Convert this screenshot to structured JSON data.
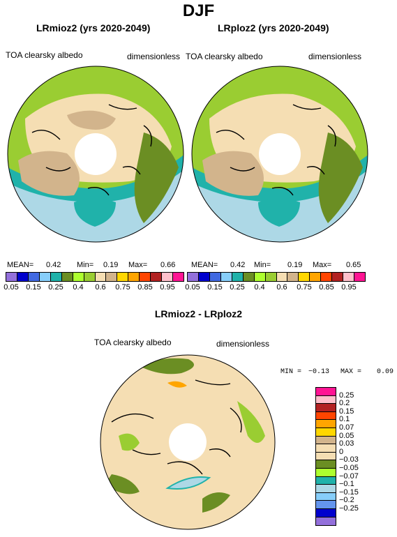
{
  "season": "DJF",
  "panel_left": {
    "title": "LRmioz2 (yrs 2020-2049)",
    "variable": "TOA clearsky albedo",
    "units": "dimensionless",
    "stats": {
      "mean_label": "MEAN=",
      "mean": "0.42",
      "min_label": "Min=",
      "min": "0.19",
      "max_label": "Max=",
      "max": "0.66"
    }
  },
  "panel_right": {
    "title": "LRploz2 (yrs 2020-2049)",
    "variable": "TOA clearsky albedo",
    "units": "dimensionless",
    "stats": {
      "mean_label": "MEAN=",
      "mean": "0.42",
      "min_label": "Min=",
      "min": "0.19",
      "max_label": "Max=",
      "max": "0.65"
    }
  },
  "colorbar_top": {
    "colors": [
      "#9370db",
      "#0000cd",
      "#4169e1",
      "#87cefa",
      "#20b2aa",
      "#6b8e23",
      "#adff2f",
      "#9acd32",
      "#f5deb3",
      "#d2b48c",
      "#ffd700",
      "#ffa500",
      "#ff4500",
      "#b22222",
      "#ffc0cb",
      "#ff1493"
    ],
    "ticks": [
      "0.05",
      "0.15",
      "0.25",
      "0.4",
      "0.6",
      "0.75",
      "0.85",
      "0.95"
    ]
  },
  "panel_diff": {
    "title": "LRmioz2 - LRploz2",
    "variable": "TOA clearsky albedo",
    "units": "dimensionless",
    "stats": {
      "min_label": "MIN =",
      "min": "−0.13",
      "max_label": "MAX =",
      "max": "0.09"
    }
  },
  "colorbar_diff": {
    "colors": [
      "#ff1493",
      "#ffc0cb",
      "#b22222",
      "#ff4500",
      "#ffa500",
      "#ffd700",
      "#d2b48c",
      "#f5deb3",
      "#f5deb3",
      "#6b8e23",
      "#adff2f",
      "#20b2aa",
      "#add8e6",
      "#87cefa",
      "#6495ed",
      "#0000cd",
      "#9370db"
    ],
    "ticks": [
      "0.25",
      "0.2",
      "0.15",
      "0.1",
      "0.07",
      "0.05",
      "0.03",
      "0",
      "−0.03",
      "−0.05",
      "−0.07",
      "−0.1",
      "−0.15",
      "−0.2",
      "−0.25"
    ]
  },
  "map_colors": {
    "ocean_far": "#add8e6",
    "ocean_mid": "#20b2aa",
    "ocean_edge": "#6495ed",
    "ice": "#f5deb3",
    "land_tan": "#d2b48c",
    "land_green": "#9acd32",
    "land_dark": "#6b8e23",
    "pole": "#ffffff"
  }
}
